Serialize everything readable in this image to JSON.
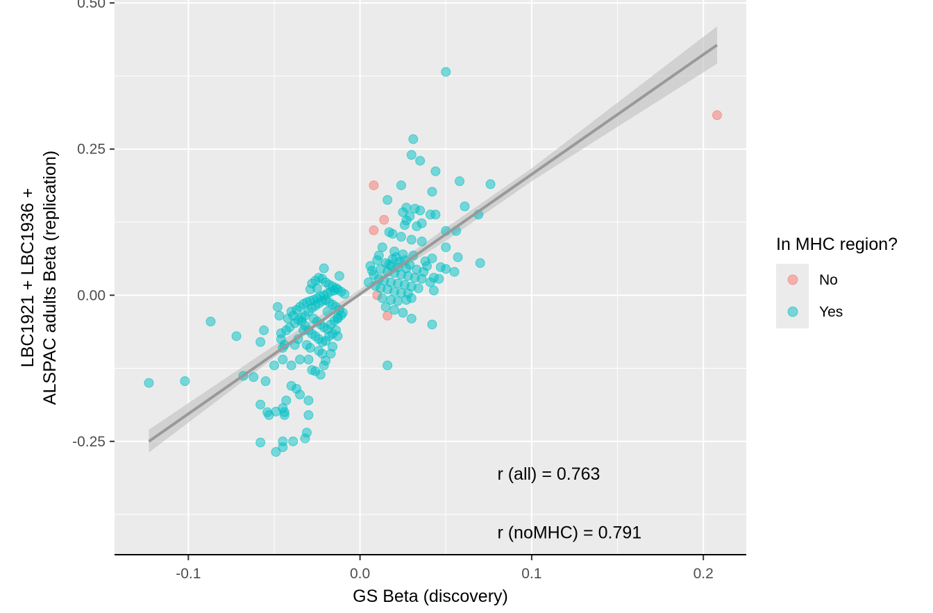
{
  "chart_data": {
    "type": "scatter",
    "xlabel": "GS Beta (discovery)",
    "ylabel_lines": [
      "LBC1921 + LBC1936 +",
      "ALSPAC adults Beta (replication)"
    ],
    "xlim": [
      -0.143,
      0.225
    ],
    "ylim": [
      -0.445,
      0.505
    ],
    "x_ticks": [
      -0.1,
      0.0,
      0.1,
      0.2
    ],
    "x_tick_labels": [
      "-0.1",
      "0.0",
      "0.1",
      "0.2"
    ],
    "y_ticks": [
      -0.25,
      0.0,
      0.25,
      0.5
    ],
    "y_tick_labels": [
      "-0.25",
      "0.00",
      "0.25",
      "0.50"
    ],
    "grid": true,
    "legend": {
      "title": "In MHC region?",
      "placement": "right",
      "entries": [
        {
          "label": "No",
          "color": "#F8766D"
        },
        {
          "label": "Yes",
          "color": "#00BFC4"
        }
      ]
    },
    "annotations": [
      {
        "text": "r (all) = 0.763",
        "x": 0.08,
        "y": -0.305
      },
      {
        "text": "r (noMHC) = 0.791",
        "x": 0.08,
        "y": -0.405
      }
    ],
    "regression": {
      "x": [
        -0.123,
        0.208
      ],
      "y": [
        -0.25,
        0.428
      ],
      "se_band": [
        [
          -0.123,
          -0.23,
          -0.269
        ],
        [
          -0.05,
          -0.086,
          -0.107
        ],
        [
          0.0,
          0.01,
          0.0
        ],
        [
          0.05,
          0.115,
          0.093
        ],
        [
          0.1,
          0.217,
          0.195
        ],
        [
          0.208,
          0.46,
          0.396
        ]
      ],
      "line_color": "#999999",
      "band_color": "#bfbfbf"
    },
    "series": [
      {
        "name": "No",
        "color": "#F8766D",
        "points": [
          [
            0.208,
            0.308
          ],
          [
            0.008,
            0.188
          ],
          [
            0.014,
            0.129
          ],
          [
            0.008,
            0.111
          ],
          [
            0.016,
            -0.035
          ],
          [
            0.01,
            0.0
          ]
        ]
      },
      {
        "name": "Yes",
        "color": "#00BFC4",
        "points": [
          [
            0.05,
            0.382
          ],
          [
            0.031,
            0.267
          ],
          [
            0.03,
            0.24
          ],
          [
            0.035,
            0.23
          ],
          [
            0.044,
            0.212
          ],
          [
            0.058,
            0.195
          ],
          [
            0.076,
            0.19
          ],
          [
            0.024,
            0.188
          ],
          [
            0.042,
            0.177
          ],
          [
            0.016,
            0.163
          ],
          [
            0.061,
            0.152
          ],
          [
            0.027,
            0.15
          ],
          [
            0.032,
            0.148
          ],
          [
            0.035,
            0.145
          ],
          [
            0.025,
            0.142
          ],
          [
            0.041,
            0.138
          ],
          [
            0.044,
            0.138
          ],
          [
            0.069,
            0.138
          ],
          [
            0.029,
            0.135
          ],
          [
            0.027,
            0.128
          ],
          [
            0.036,
            0.123
          ],
          [
            0.026,
            0.12
          ],
          [
            0.033,
            0.118
          ],
          [
            0.05,
            0.11
          ],
          [
            0.056,
            0.11
          ],
          [
            0.017,
            0.108
          ],
          [
            0.019,
            0.105
          ],
          [
            0.024,
            0.1
          ],
          [
            0.03,
            0.095
          ],
          [
            0.036,
            0.092
          ],
          [
            0.05,
            0.082
          ],
          [
            0.057,
            0.065
          ],
          [
            0.07,
            0.055
          ],
          [
            0.013,
            0.082
          ],
          [
            0.02,
            0.075
          ],
          [
            0.025,
            0.07
          ],
          [
            0.031,
            0.068
          ],
          [
            0.042,
            0.063
          ],
          [
            0.038,
            0.058
          ],
          [
            0.047,
            0.048
          ],
          [
            0.05,
            0.045
          ],
          [
            0.055,
            0.04
          ],
          [
            0.043,
            0.03
          ],
          [
            0.046,
            0.028
          ],
          [
            0.041,
            0.022
          ],
          [
            0.043,
            0.008
          ],
          [
            0.01,
            0.06
          ],
          [
            0.015,
            0.055
          ],
          [
            0.018,
            0.05
          ],
          [
            0.022,
            0.048
          ],
          [
            0.027,
            0.046
          ],
          [
            0.012,
            0.045
          ],
          [
            0.016,
            0.04
          ],
          [
            0.02,
            0.038
          ],
          [
            0.024,
            0.035
          ],
          [
            0.028,
            0.033
          ],
          [
            0.032,
            0.03
          ],
          [
            0.036,
            0.028
          ],
          [
            0.011,
            0.028
          ],
          [
            0.014,
            0.025
          ],
          [
            0.018,
            0.022
          ],
          [
            0.022,
            0.02
          ],
          [
            0.026,
            0.018
          ],
          [
            0.03,
            0.015
          ],
          [
            0.034,
            0.012
          ],
          [
            0.012,
            0.012
          ],
          [
            0.016,
            0.01
          ],
          [
            0.02,
            0.006
          ],
          [
            0.024,
            0.004
          ],
          [
            0.028,
            0.003
          ],
          [
            0.013,
            -0.005
          ],
          [
            0.018,
            -0.008
          ],
          [
            0.022,
            -0.01
          ],
          [
            0.027,
            -0.008
          ],
          [
            0.03,
            -0.005
          ],
          [
            0.015,
            -0.02
          ],
          [
            0.02,
            -0.025
          ],
          [
            0.025,
            -0.03
          ],
          [
            0.03,
            -0.04
          ],
          [
            0.042,
            -0.05
          ],
          [
            0.016,
            -0.12
          ],
          [
            0.006,
            0.05
          ],
          [
            0.007,
            0.042
          ],
          [
            0.008,
            0.035
          ],
          [
            0.005,
            0.022
          ],
          [
            0.009,
            0.016
          ],
          [
            0.011,
            0.068
          ],
          [
            0.019,
            0.062
          ],
          [
            0.023,
            0.057
          ],
          [
            0.017,
            0.053
          ],
          [
            0.021,
            0.065
          ],
          [
            0.026,
            0.06
          ],
          [
            0.029,
            0.052
          ],
          [
            0.033,
            0.044
          ],
          [
            0.037,
            0.04
          ],
          [
            0.039,
            0.05
          ],
          [
            -0.123,
            -0.15
          ],
          [
            -0.102,
            -0.147
          ],
          [
            -0.087,
            -0.045
          ],
          [
            -0.072,
            -0.07
          ],
          [
            -0.068,
            -0.138
          ],
          [
            -0.062,
            -0.14
          ],
          [
            -0.058,
            -0.08
          ],
          [
            -0.056,
            -0.06
          ],
          [
            -0.055,
            -0.147
          ],
          [
            -0.058,
            -0.187
          ],
          [
            -0.054,
            -0.2
          ],
          [
            -0.053,
            -0.205
          ],
          [
            -0.049,
            -0.199
          ],
          [
            -0.045,
            -0.193
          ],
          [
            -0.044,
            -0.2
          ],
          [
            -0.044,
            -0.205
          ],
          [
            -0.043,
            -0.18
          ],
          [
            -0.04,
            -0.155
          ],
          [
            -0.037,
            -0.16
          ],
          [
            -0.035,
            -0.17
          ],
          [
            -0.03,
            -0.18
          ],
          [
            -0.03,
            -0.205
          ],
          [
            -0.031,
            -0.235
          ],
          [
            -0.032,
            -0.245
          ],
          [
            -0.039,
            -0.25
          ],
          [
            -0.045,
            -0.25
          ],
          [
            -0.045,
            -0.26
          ],
          [
            -0.049,
            -0.268
          ],
          [
            -0.058,
            -0.252
          ],
          [
            -0.05,
            -0.12
          ],
          [
            -0.045,
            -0.11
          ],
          [
            -0.04,
            -0.12
          ],
          [
            -0.035,
            -0.11
          ],
          [
            -0.03,
            -0.11
          ],
          [
            -0.028,
            -0.128
          ],
          [
            -0.026,
            -0.13
          ],
          [
            -0.023,
            -0.136
          ],
          [
            -0.021,
            -0.12
          ],
          [
            -0.02,
            -0.112
          ],
          [
            -0.017,
            -0.1
          ],
          [
            -0.016,
            -0.088
          ],
          [
            -0.013,
            -0.07
          ],
          [
            -0.013,
            -0.04
          ],
          [
            -0.046,
            -0.065
          ],
          [
            -0.046,
            -0.075
          ],
          [
            -0.043,
            -0.06
          ],
          [
            -0.041,
            -0.055
          ],
          [
            -0.038,
            -0.048
          ],
          [
            -0.036,
            -0.042
          ],
          [
            -0.034,
            -0.038
          ],
          [
            -0.032,
            -0.052
          ],
          [
            -0.03,
            -0.06
          ],
          [
            -0.028,
            -0.066
          ],
          [
            -0.026,
            -0.07
          ],
          [
            -0.024,
            -0.075
          ],
          [
            -0.022,
            -0.08
          ],
          [
            -0.02,
            -0.078
          ],
          [
            -0.018,
            -0.07
          ],
          [
            -0.016,
            -0.066
          ],
          [
            -0.014,
            -0.06
          ],
          [
            -0.04,
            -0.028
          ],
          [
            -0.037,
            -0.025
          ],
          [
            -0.035,
            -0.02
          ],
          [
            -0.033,
            -0.015
          ],
          [
            -0.031,
            -0.012
          ],
          [
            -0.029,
            -0.01
          ],
          [
            -0.027,
            -0.008
          ],
          [
            -0.025,
            -0.005
          ],
          [
            -0.023,
            -0.002
          ],
          [
            -0.021,
            0.0
          ],
          [
            -0.019,
            0.003
          ],
          [
            -0.017,
            0.006
          ],
          [
            -0.015,
            0.008
          ],
          [
            -0.013,
            0.01
          ],
          [
            -0.011,
            0.006
          ],
          [
            -0.009,
            0.002
          ],
          [
            -0.034,
            -0.045
          ],
          [
            -0.032,
            -0.035
          ],
          [
            -0.03,
            -0.028
          ],
          [
            -0.028,
            -0.022
          ],
          [
            -0.026,
            -0.018
          ],
          [
            -0.024,
            -0.014
          ],
          [
            -0.022,
            -0.01
          ],
          [
            -0.02,
            -0.008
          ],
          [
            -0.018,
            -0.012
          ],
          [
            -0.016,
            -0.016
          ],
          [
            -0.014,
            -0.02
          ],
          [
            -0.012,
            -0.025
          ],
          [
            -0.01,
            -0.03
          ],
          [
            -0.027,
            -0.04
          ],
          [
            -0.025,
            -0.045
          ],
          [
            -0.023,
            -0.05
          ],
          [
            -0.021,
            -0.055
          ],
          [
            -0.019,
            -0.058
          ],
          [
            -0.017,
            -0.05
          ],
          [
            -0.015,
            -0.044
          ],
          [
            -0.013,
            -0.038
          ],
          [
            -0.011,
            -0.034
          ],
          [
            -0.028,
            0.02
          ],
          [
            -0.026,
            0.025
          ],
          [
            -0.024,
            0.03
          ],
          [
            -0.022,
            0.028
          ],
          [
            -0.02,
            0.022
          ],
          [
            -0.018,
            0.018
          ],
          [
            -0.016,
            0.015
          ],
          [
            -0.014,
            0.012
          ],
          [
            -0.021,
            0.046
          ],
          [
            -0.012,
            0.033
          ],
          [
            -0.029,
            0.01
          ],
          [
            -0.025,
            0.012
          ],
          [
            -0.019,
            -0.028
          ],
          [
            -0.033,
            -0.06
          ],
          [
            -0.036,
            -0.075
          ],
          [
            -0.038,
            -0.085
          ],
          [
            -0.031,
            -0.085
          ],
          [
            -0.029,
            -0.09
          ],
          [
            -0.024,
            -0.095
          ],
          [
            -0.022,
            -0.1
          ],
          [
            -0.048,
            -0.02
          ],
          [
            -0.047,
            -0.035
          ],
          [
            -0.042,
            -0.04
          ],
          [
            -0.039,
            -0.035
          ],
          [
            -0.044,
            -0.085
          ],
          [
            -0.045,
            -0.09
          ]
        ]
      }
    ]
  }
}
